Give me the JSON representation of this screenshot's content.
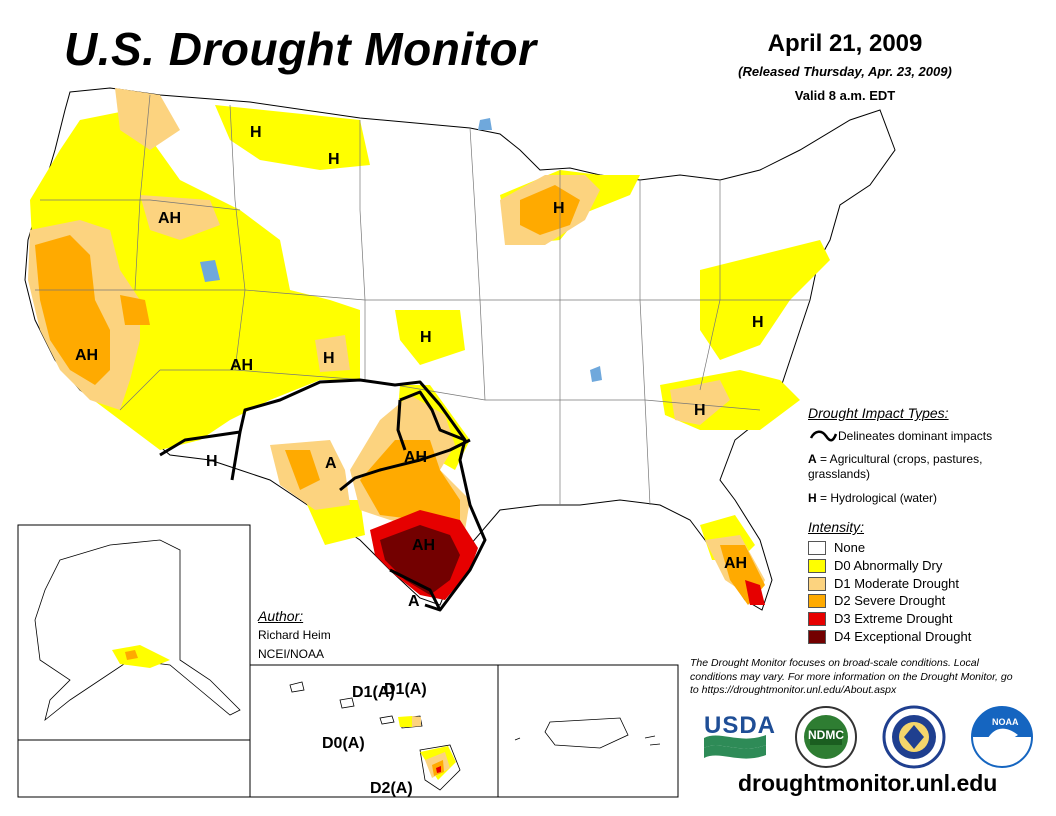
{
  "header": {
    "title": "U.S. Drought Monitor",
    "date": "April 21, 2009",
    "released": "(Released Thursday, Apr. 23, 2009)",
    "valid": "Valid 8 a.m. EDT"
  },
  "map_labels": {
    "h_montana_1": "H",
    "h_montana_2": "H",
    "ah_idaho": "AH",
    "h_wisconsin": "H",
    "ah_california": "AH",
    "ah_arizona": "AH",
    "h_colorado": "H",
    "h_kansas": "H",
    "h_maryland": "H",
    "h_carolinas": "H",
    "h_new_mexico": "H",
    "a_west_texas": "A",
    "ah_oklahoma": "AH",
    "ah_south_texas": "AH",
    "a_texas_tip": "A",
    "ah_florida": "AH"
  },
  "hawaii_labels": {
    "d1a_1": "D1(A)",
    "d1a_2": "D1(A)",
    "d0a": "D0(A)",
    "d2a": "D2(A)"
  },
  "legend": {
    "impact_title": "Drought Impact Types:",
    "delineates": "Delineates dominant impacts",
    "ag_key": "A",
    "ag_text": " = Agricultural (crops, pastures, grasslands)",
    "hyd_key": "H",
    "hyd_text": " = Hydrological (water)",
    "intensity_title": "Intensity:",
    "levels": [
      {
        "label": "None",
        "color": "#ffffff"
      },
      {
        "label": "D0 Abnormally Dry",
        "color": "#ffff00"
      },
      {
        "label": "D1 Moderate Drought",
        "color": "#fcd37f"
      },
      {
        "label": "D2 Severe Drought",
        "color": "#ffaa00"
      },
      {
        "label": "D3 Extreme Drought",
        "color": "#e60000"
      },
      {
        "label": "D4 Exceptional Drought",
        "color": "#730000"
      }
    ]
  },
  "author": {
    "heading": "Author:",
    "name": "Richard Heim",
    "org": "NCEI/NOAA"
  },
  "note": "The Drought Monitor focuses on broad-scale conditions. Local conditions may vary. For more information on the Drought Monitor, go to https://droughtmonitor.unl.edu/About.aspx",
  "logos": {
    "usda": "USDA",
    "ndmc": "NDMC",
    "noaa": "NOAA"
  },
  "footer_url": "droughtmonitor.unl.edu",
  "colors": {
    "d0": "#ffff00",
    "d1": "#fcd37f",
    "d2": "#ffaa00",
    "d3": "#e60000",
    "d4": "#730000",
    "water": "#6fa8dc",
    "usda_blue": "#1f4e96",
    "usda_green": "#2e8b57",
    "noaa_blue": "#1565c0"
  }
}
